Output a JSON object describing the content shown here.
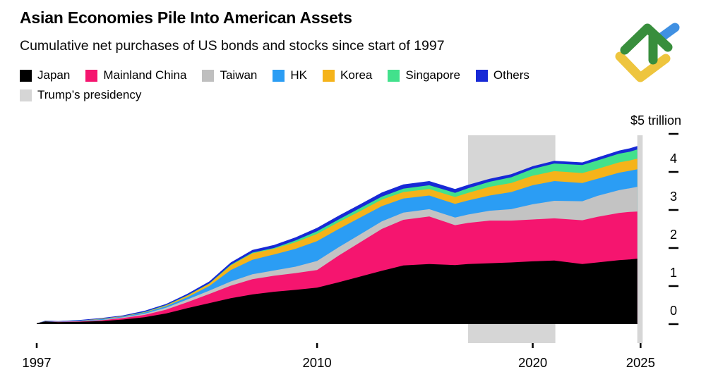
{
  "header": {
    "title": "Asian Economies Pile Into American Assets",
    "subtitle": "Cumulative net purchases of US bonds and stocks since start of 1997"
  },
  "logo": {
    "name": "litefinance-logo",
    "green": "#388e3c",
    "blue": "#4090e2",
    "yellow": "#eec53e"
  },
  "legend": {
    "items": [
      {
        "label": "Japan",
        "color": "#000000"
      },
      {
        "label": "Mainland China",
        "color": "#f5156f"
      },
      {
        "label": "Taiwan",
        "color": "#bfbfbf"
      },
      {
        "label": "HK",
        "color": "#2b9df4"
      },
      {
        "label": "Korea",
        "color": "#f5b31a"
      },
      {
        "label": "Singapore",
        "color": "#42e18c"
      },
      {
        "label": "Others",
        "color": "#1729d6"
      },
      {
        "label": "Trump’s presidency",
        "color": "#d6d6d6"
      }
    ]
  },
  "chart_data": {
    "type": "area",
    "stacked": true,
    "title": "Asian Economies Pile Into American Assets",
    "subtitle": "Cumulative net purchases of US bonds and stocks since start of 1997",
    "ylabel": "$ trillion",
    "y_axis_top_label": "$5 trillion",
    "y_ticks": [
      0,
      1,
      2,
      3,
      4,
      5
    ],
    "x_ticks": [
      1997,
      2010,
      2020,
      2025
    ],
    "xlim": [
      1997,
      2025.35
    ],
    "ylim": [
      0,
      5
    ],
    "grid": false,
    "legend_position": "top-left",
    "band_color": "#d6d6d6",
    "bands": [
      {
        "label": "Trump’s presidency",
        "from": 2017.0,
        "to": 2021.05
      },
      {
        "label": "Trump’s presidency",
        "from": 2024.85,
        "to": 2025.1
      }
    ],
    "x": [
      1997,
      1997.4,
      1998,
      1999,
      2000,
      2001,
      2002,
      2003,
      2004,
      2005,
      2006,
      2007,
      2008,
      2009,
      2010,
      2011,
      2012,
      2013,
      2014,
      2015.2,
      2016.4,
      2017,
      2018,
      2019,
      2020,
      2021,
      2022.3,
      2023,
      2024,
      2024.5,
      2024.85
    ],
    "series": [
      {
        "name": "Japan",
        "color": "#000000",
        "values": [
          0.02,
          0.07,
          0.05,
          0.06,
          0.08,
          0.12,
          0.18,
          0.28,
          0.42,
          0.55,
          0.68,
          0.78,
          0.85,
          0.9,
          0.96,
          1.1,
          1.25,
          1.4,
          1.54,
          1.58,
          1.55,
          1.58,
          1.6,
          1.62,
          1.65,
          1.67,
          1.58,
          1.62,
          1.68,
          1.7,
          1.72
        ]
      },
      {
        "name": "Mainland China",
        "color": "#f5156f",
        "values": [
          0.0,
          0.0,
          0.01,
          0.01,
          0.02,
          0.04,
          0.06,
          0.1,
          0.16,
          0.24,
          0.33,
          0.4,
          0.42,
          0.44,
          0.46,
          0.7,
          0.9,
          1.1,
          1.2,
          1.25,
          1.05,
          1.08,
          1.12,
          1.1,
          1.1,
          1.11,
          1.15,
          1.2,
          1.24,
          1.25,
          1.24
        ]
      },
      {
        "name": "Taiwan",
        "color": "#c3c3c3",
        "values": [
          0.0,
          0.0,
          0.0,
          0.01,
          0.01,
          0.02,
          0.03,
          0.05,
          0.07,
          0.09,
          0.11,
          0.13,
          0.14,
          0.17,
          0.24,
          0.22,
          0.21,
          0.2,
          0.19,
          0.19,
          0.2,
          0.22,
          0.26,
          0.3,
          0.4,
          0.46,
          0.5,
          0.55,
          0.6,
          0.62,
          0.65
        ]
      },
      {
        "name": "HK",
        "color": "#2b9df4",
        "values": [
          0.0,
          0.01,
          0.01,
          0.01,
          0.02,
          0.02,
          0.03,
          0.04,
          0.06,
          0.12,
          0.3,
          0.38,
          0.42,
          0.47,
          0.52,
          0.48,
          0.44,
          0.4,
          0.37,
          0.36,
          0.36,
          0.37,
          0.4,
          0.45,
          0.5,
          0.52,
          0.48,
          0.45,
          0.46,
          0.46,
          0.46
        ]
      },
      {
        "name": "Korea",
        "color": "#f5b31a",
        "values": [
          0.0,
          0.0,
          0.0,
          0.0,
          0.01,
          0.01,
          0.01,
          0.02,
          0.04,
          0.06,
          0.12,
          0.17,
          0.15,
          0.17,
          0.19,
          0.18,
          0.17,
          0.17,
          0.17,
          0.17,
          0.18,
          0.2,
          0.23,
          0.24,
          0.25,
          0.26,
          0.26,
          0.26,
          0.27,
          0.27,
          0.28
        ]
      },
      {
        "name": "Singapore",
        "color": "#42e18c",
        "values": [
          0.0,
          0.0,
          0.0,
          0.0,
          0.0,
          0.0,
          0.01,
          0.01,
          0.01,
          0.01,
          0.02,
          0.02,
          0.02,
          0.05,
          0.07,
          0.07,
          0.08,
          0.08,
          0.09,
          0.1,
          0.11,
          0.12,
          0.13,
          0.15,
          0.18,
          0.2,
          0.21,
          0.22,
          0.23,
          0.23,
          0.24
        ]
      },
      {
        "name": "Others",
        "color": "#1729d6",
        "values": [
          0.0,
          0.01,
          0.01,
          0.02,
          0.02,
          0.02,
          0.03,
          0.03,
          0.04,
          0.05,
          0.06,
          0.07,
          0.08,
          0.08,
          0.09,
          0.1,
          0.1,
          0.11,
          0.11,
          0.11,
          0.1,
          0.09,
          0.08,
          0.08,
          0.07,
          0.07,
          0.07,
          0.08,
          0.08,
          0.09,
          0.09
        ]
      }
    ]
  }
}
